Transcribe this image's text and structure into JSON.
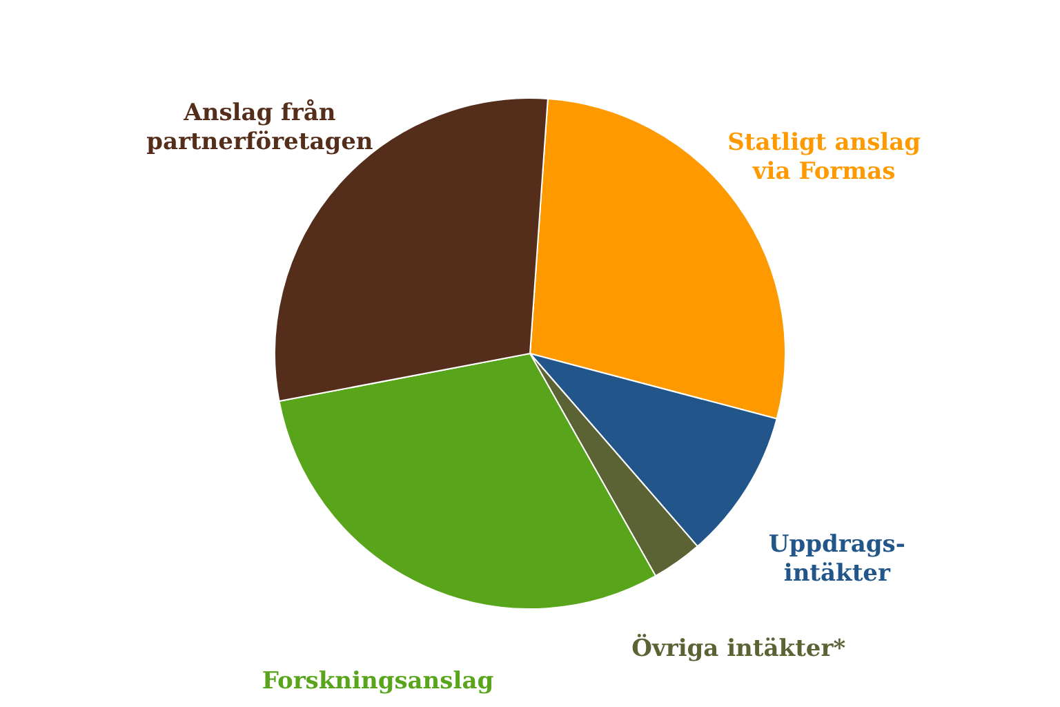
{
  "chart_data": {
    "type": "pie",
    "categories": [
      "Statligt anslag\nvia Formas",
      "Uppdrags-\nintäkter",
      "Övriga intäkter*",
      "Forskningsanslag",
      "Anslag från\npartnerföretagen"
    ],
    "values": [
      28,
      9.5,
      3.2,
      30.2,
      29.1
    ],
    "colors": [
      "#ff9900",
      "#22568b",
      "#5b6334",
      "#58a51c",
      "#552e1b"
    ],
    "legend": false
  }
}
